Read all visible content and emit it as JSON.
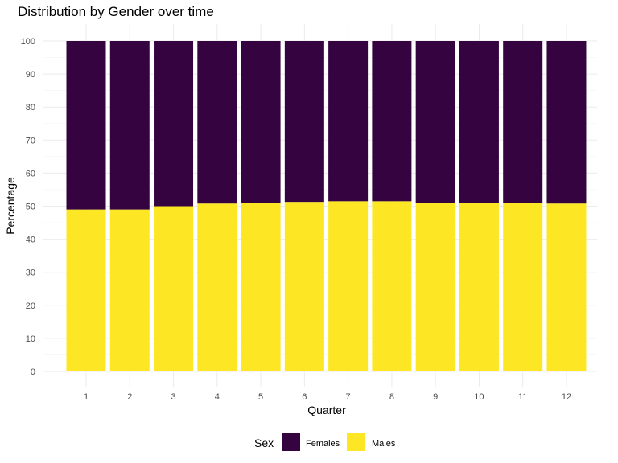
{
  "chart_data": {
    "type": "bar",
    "stacked": true,
    "title": "Distribution by Gender over time",
    "xlabel": "Quarter",
    "ylabel": "Percentage",
    "categories": [
      "1",
      "2",
      "3",
      "4",
      "5",
      "6",
      "7",
      "8",
      "9",
      "10",
      "11",
      "12"
    ],
    "ylim": [
      0,
      100
    ],
    "yticks": [
      "0",
      "10",
      "20",
      "30",
      "40",
      "50",
      "60",
      "70",
      "80",
      "90",
      "100"
    ],
    "grid": true,
    "legend": {
      "title": "Sex",
      "placement": "bottom"
    },
    "series": [
      {
        "name": "Males",
        "color": "#fde725",
        "values": [
          49.0,
          49.0,
          50.0,
          50.8,
          51.0,
          51.3,
          51.5,
          51.5,
          51.0,
          51.0,
          51.0,
          50.8
        ]
      },
      {
        "name": "Females",
        "color": "#35033f",
        "values": [
          51.0,
          51.0,
          50.0,
          49.2,
          49.0,
          48.7,
          48.5,
          48.5,
          49.0,
          49.0,
          49.0,
          49.2
        ]
      }
    ],
    "legend_order": [
      "Females",
      "Males"
    ]
  }
}
